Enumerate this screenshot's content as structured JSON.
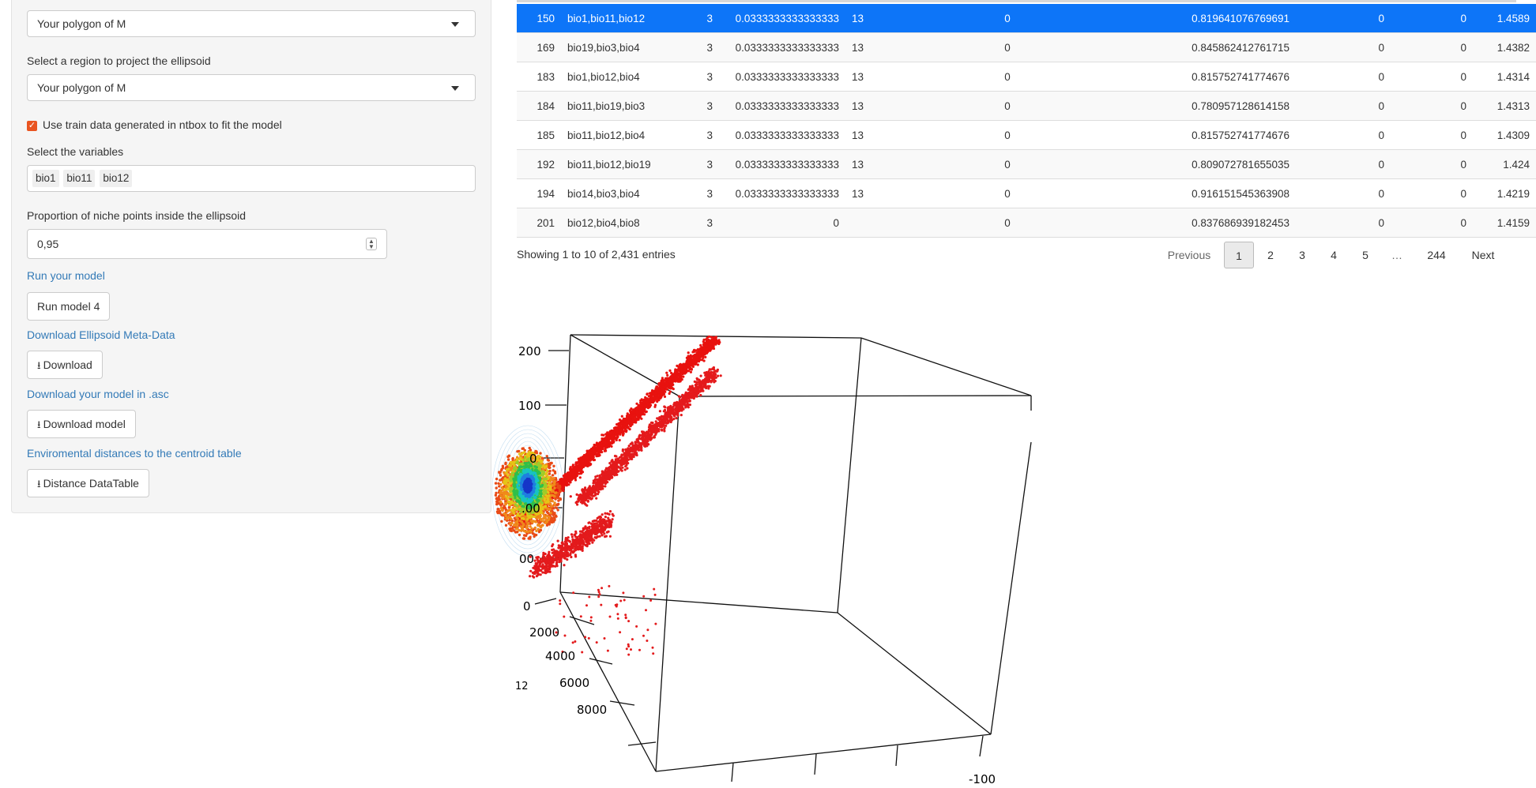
{
  "sidebar": {
    "select_polygon_value": "Your polygon of M",
    "project_label": "Select a region to project the ellipsoid",
    "project_value": "Your polygon of M",
    "train_checkbox_label": "Use train data generated in ntbox to fit the model",
    "variables_label": "Select the variables",
    "variables": [
      "bio1",
      "bio11",
      "bio12"
    ],
    "proportion_label": "Proportion of niche points inside the ellipsoid",
    "proportion_value": "0,95",
    "run_model_link": "Run your model",
    "run_model_button": "Run model 4",
    "download_meta_link": "Download Ellipsoid Meta-Data",
    "download_button": "Download",
    "download_model_link": "Download your model in .asc",
    "download_model_button": "Download model",
    "distances_link": "Enviromental distances to the centroid table",
    "distance_button": "Distance DataTable"
  },
  "table": {
    "rows": [
      {
        "id": "150",
        "vars": "bio1,bio11,bio12",
        "n": "3",
        "rate": "0.0333333333333333",
        "k": "13",
        "z": "0",
        "auc": "0.819641076769691",
        "a": "0",
        "b": "0",
        "last": "1.4589"
      },
      {
        "id": "169",
        "vars": "bio19,bio3,bio4",
        "n": "3",
        "rate": "0.0333333333333333",
        "k": "13",
        "z": "0",
        "auc": "0.845862412761715",
        "a": "0",
        "b": "0",
        "last": "1.4382"
      },
      {
        "id": "183",
        "vars": "bio1,bio12,bio4",
        "n": "3",
        "rate": "0.0333333333333333",
        "k": "13",
        "z": "0",
        "auc": "0.815752741774676",
        "a": "0",
        "b": "0",
        "last": "1.4314"
      },
      {
        "id": "184",
        "vars": "bio11,bio19,bio3",
        "n": "3",
        "rate": "0.0333333333333333",
        "k": "13",
        "z": "0",
        "auc": "0.780957128614158",
        "a": "0",
        "b": "0",
        "last": "1.4313"
      },
      {
        "id": "185",
        "vars": "bio11,bio12,bio4",
        "n": "3",
        "rate": "0.0333333333333333",
        "k": "13",
        "z": "0",
        "auc": "0.815752741774676",
        "a": "0",
        "b": "0",
        "last": "1.4309"
      },
      {
        "id": "192",
        "vars": "bio11,bio12,bio19",
        "n": "3",
        "rate": "0.0333333333333333",
        "k": "13",
        "z": "0",
        "auc": "0.809072781655035",
        "a": "0",
        "b": "0",
        "last": "1.424"
      },
      {
        "id": "194",
        "vars": "bio14,bio3,bio4",
        "n": "3",
        "rate": "0.0333333333333333",
        "k": "13",
        "z": "0",
        "auc": "0.916151545363908",
        "a": "0",
        "b": "0",
        "last": "1.4219"
      },
      {
        "id": "201",
        "vars": "bio12,bio4,bio8",
        "n": "3",
        "rate": "0",
        "k": "",
        "z": "0",
        "auc": "0.837686939182453",
        "a": "0",
        "b": "0",
        "last": "1.4159"
      }
    ],
    "info": "Showing 1 to 10 of 2,431 entries",
    "pagination": {
      "previous": "Previous",
      "pages": [
        "1",
        "2",
        "3",
        "4",
        "5",
        "…",
        "244"
      ],
      "next": "Next",
      "current": "1"
    }
  },
  "plot": {
    "left_ticks": [
      "200",
      "100",
      "0",
      ".00",
      "00",
      "0"
    ],
    "depth_ticks": [
      "2000",
      "4000",
      "6000",
      "8000"
    ],
    "depth_axis_label": "12",
    "bottom_tick": "-100"
  },
  "colors": {
    "accent": "#0d75f8",
    "checkbox": "#e95420",
    "link": "#337ab7"
  }
}
